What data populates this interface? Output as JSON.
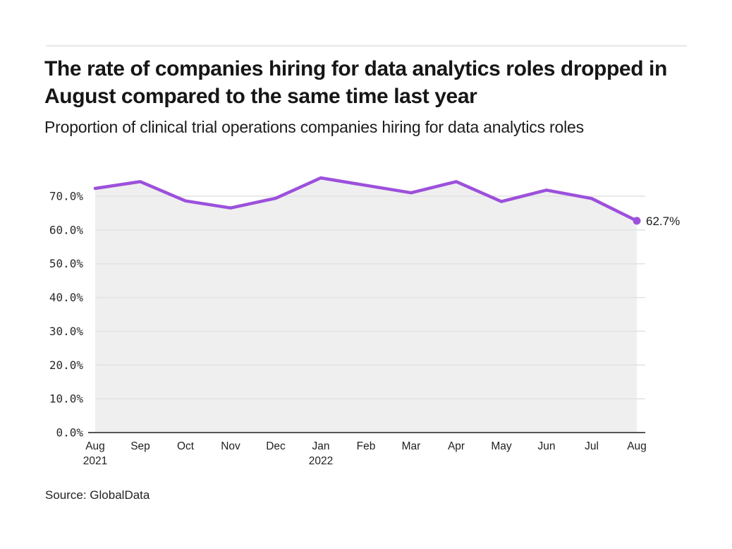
{
  "header": {
    "title": "The rate of companies hiring for data analytics roles dropped in August compared to the same time last year",
    "subtitle": "Proportion of clinical trial operations companies hiring for data analytics roles"
  },
  "footer": {
    "source": "Source: GlobalData"
  },
  "chart_data": {
    "type": "area",
    "title": "The rate of companies hiring for data analytics roles dropped in August compared to the same time last year",
    "subtitle": "Proportion of clinical trial operations companies hiring for data analytics roles",
    "x": [
      "Aug 2021",
      "Sep 2021",
      "Oct 2021",
      "Nov 2021",
      "Dec 2021",
      "Jan 2022",
      "Feb 2022",
      "Mar 2022",
      "Apr 2022",
      "May 2022",
      "Jun 2022",
      "Jul 2022",
      "Aug 2022"
    ],
    "series": [
      {
        "name": "Proportion of companies hiring for data analytics roles",
        "values": [
          72.3,
          74.3,
          68.6,
          66.5,
          69.4,
          75.4,
          73.2,
          71.0,
          74.3,
          68.4,
          71.8,
          69.3,
          62.7
        ]
      }
    ],
    "x_ticks": [
      {
        "label": "Aug",
        "sublabel": "2021"
      },
      {
        "label": "Sep"
      },
      {
        "label": "Oct"
      },
      {
        "label": "Nov"
      },
      {
        "label": "Dec"
      },
      {
        "label": "Jan",
        "sublabel": "2022"
      },
      {
        "label": "Feb"
      },
      {
        "label": "Mar"
      },
      {
        "label": "Apr"
      },
      {
        "label": "May"
      },
      {
        "label": "Jun"
      },
      {
        "label": "Jul"
      },
      {
        "label": "Aug"
      }
    ],
    "y_ticks": [
      {
        "value": 0,
        "label": "0.0%"
      },
      {
        "value": 10,
        "label": "10.0%"
      },
      {
        "value": 20,
        "label": "20.0%"
      },
      {
        "value": 30,
        "label": "30.0%"
      },
      {
        "value": 40,
        "label": "40.0%"
      },
      {
        "value": 50,
        "label": "50.0%"
      },
      {
        "value": 60,
        "label": "60.0%"
      },
      {
        "value": 70,
        "label": "70.0%"
      }
    ],
    "end_point_label": "62.7%",
    "ylim": [
      0,
      78
    ],
    "grid": true,
    "legend": "none",
    "colors": {
      "line": "#9c50dc",
      "end_dot": "#9c50dc",
      "area_fill": "#efefef",
      "grid_line": "#e2e2e2",
      "axis_line": "#555555",
      "tick_text": "#2b2b2b",
      "title_text": "#161616"
    }
  }
}
